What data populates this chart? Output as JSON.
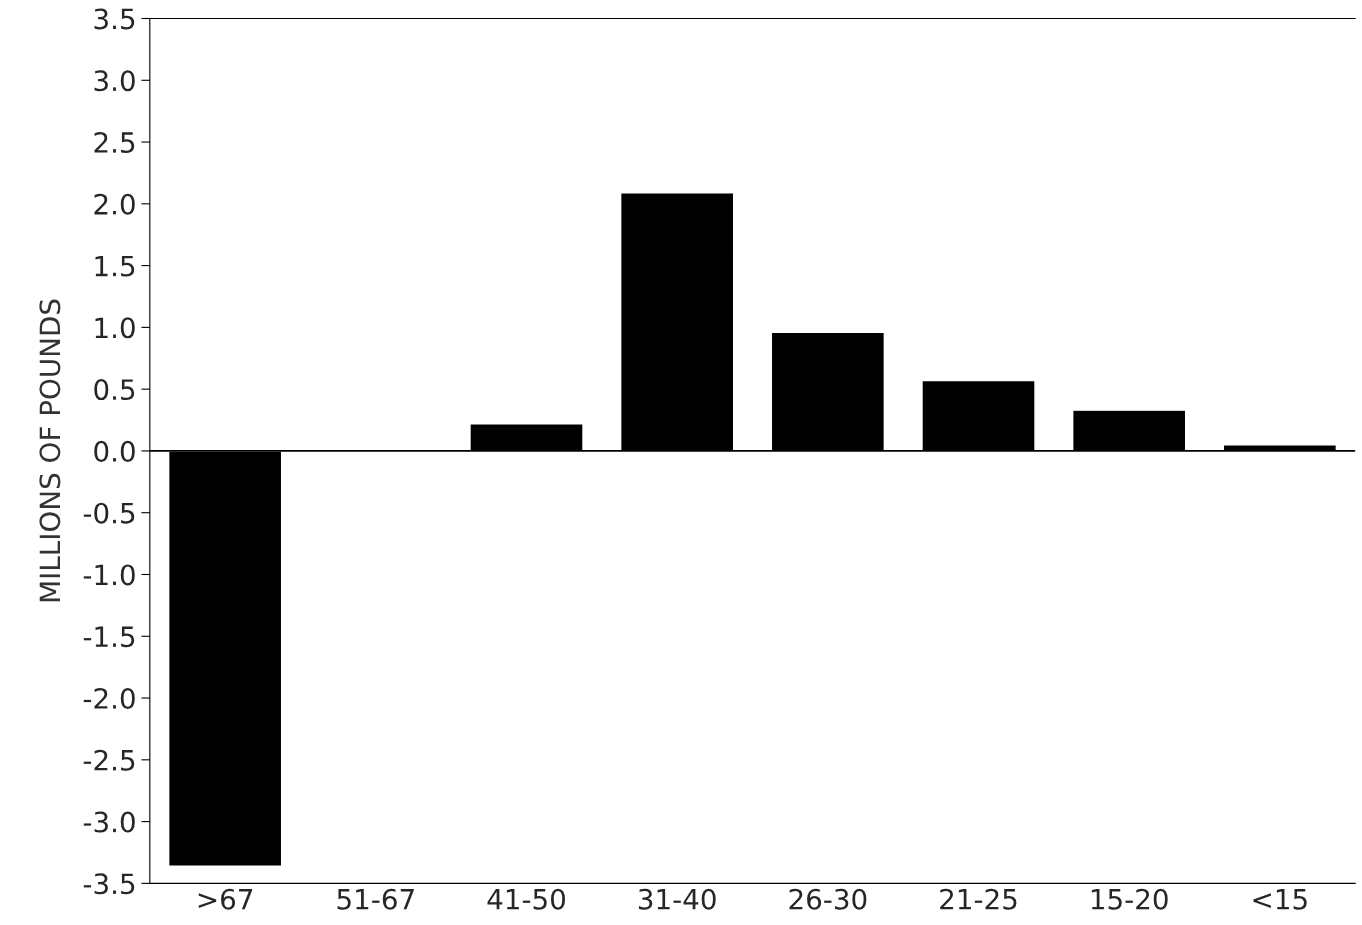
{
  "chart_data": {
    "type": "bar",
    "ylabel": "MILLIONS OF POUNDS",
    "categories": [
      ">67",
      "51-67",
      "41-50",
      "31-40",
      "26-30",
      "21-25",
      "15-20",
      "<15"
    ],
    "values": [
      -3.36,
      0.01,
      0.22,
      2.09,
      0.96,
      0.57,
      0.33,
      0.05
    ],
    "color": "#000000",
    "ylim": [
      -3.5,
      3.5
    ],
    "yticks": [
      {
        "value": 3.5,
        "label": "3.5"
      },
      {
        "value": 3.0,
        "label": "3.0"
      },
      {
        "value": 2.5,
        "label": "2.5"
      },
      {
        "value": 2.0,
        "label": "2.0"
      },
      {
        "value": 1.5,
        "label": "1.5"
      },
      {
        "value": 1.0,
        "label": "1.0"
      },
      {
        "value": 0.5,
        "label": "0.5"
      },
      {
        "value": 0.0,
        "label": "0.0"
      },
      {
        "value": -0.5,
        "label": "-0.5"
      },
      {
        "value": -1.0,
        "label": "-1.0"
      },
      {
        "value": -1.5,
        "label": "-1.5"
      },
      {
        "value": -2.0,
        "label": "-2.0"
      },
      {
        "value": -2.5,
        "label": "-2.5"
      },
      {
        "value": -3.0,
        "label": "-3.0"
      },
      {
        "value": -3.5,
        "label": "-3.5"
      }
    ],
    "ref_lines": [
      {
        "axis": "y",
        "value": 0,
        "color": "#000000"
      }
    ],
    "grid": false,
    "legend": false
  }
}
